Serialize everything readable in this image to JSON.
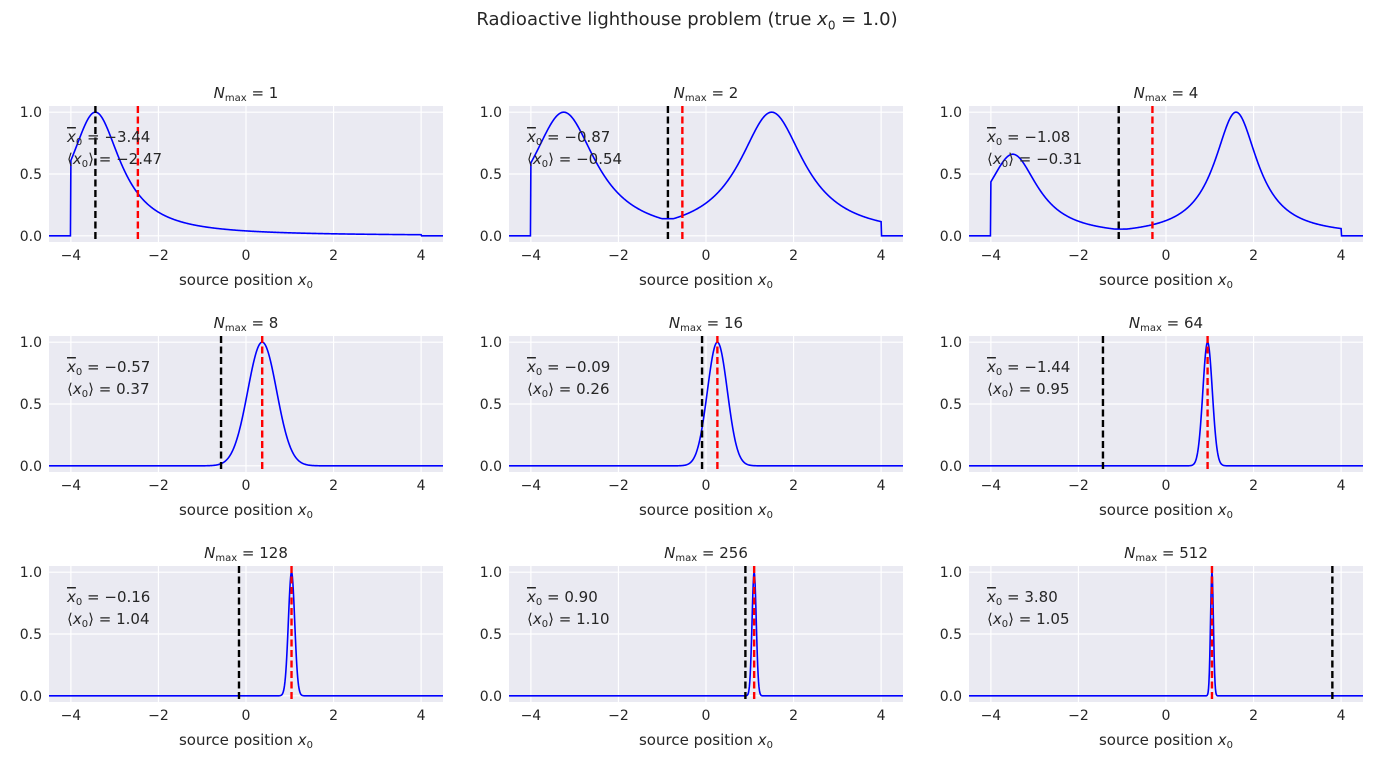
{
  "figure": {
    "title_prefix": "Radioactive lighthouse problem (true ",
    "title_var": "x",
    "title_sub": "0",
    "title_suffix": " = 1.0)"
  },
  "colors": {
    "background": "#eaeaf2",
    "grid": "#ffffff",
    "posterior": "#0000ff",
    "sample_mean_line": "#000000",
    "posterior_mean_line": "#ff0000"
  },
  "chart_data": [
    {
      "type": "line",
      "title_prefix": "N",
      "title_sub": "max",
      "title_value": "= 1",
      "xlabel_prefix": "source position ",
      "xlabel_var": "x",
      "xlabel_sub": "0",
      "xlim": [
        -4.5,
        4.5
      ],
      "ylim": [
        -0.05,
        1.05
      ],
      "xticks": [
        "−4",
        "−2",
        "0",
        "2",
        "4"
      ],
      "yticks": [
        "0.0",
        "0.5",
        "1.0"
      ],
      "support": [
        -4,
        4
      ],
      "grid": true,
      "peaks": [
        {
          "center": -3.44,
          "width": 0.7
        }
      ],
      "sample_mean": -3.44,
      "posterior_mean": -2.47,
      "annotation_sample_mean": "= −3.44",
      "annotation_posterior_mean": "= −2.47"
    },
    {
      "type": "line",
      "title_prefix": "N",
      "title_sub": "max",
      "title_value": "= 2",
      "xlabel_prefix": "source position ",
      "xlabel_var": "x",
      "xlabel_sub": "0",
      "xlim": [
        -4.5,
        4.5
      ],
      "ylim": [
        -0.05,
        1.05
      ],
      "xticks": [
        "−4",
        "−2",
        "0",
        "2",
        "4"
      ],
      "yticks": [
        "0.0",
        "0.5",
        "1.0"
      ],
      "support": [
        -4,
        4
      ],
      "grid": true,
      "peaks": [
        {
          "center": -3.25,
          "width": 0.9
        },
        {
          "center": 1.5,
          "width": 0.9
        }
      ],
      "sample_mean": -0.87,
      "posterior_mean": -0.54,
      "annotation_sample_mean": "= −0.87",
      "annotation_posterior_mean": "= −0.54"
    },
    {
      "type": "line",
      "title_prefix": "N",
      "title_sub": "max",
      "title_value": "= 4",
      "xlabel_prefix": "source position ",
      "xlabel_var": "x",
      "xlabel_sub": "0",
      "xlim": [
        -4.5,
        4.5
      ],
      "ylim": [
        -0.05,
        1.05
      ],
      "xticks": [
        "−4",
        "−2",
        "0",
        "2",
        "4"
      ],
      "yticks": [
        "0.0",
        "0.5",
        "1.0"
      ],
      "support": [
        -4,
        4
      ],
      "grid": true,
      "peaks": [
        {
          "center": -3.5,
          "width": 0.7,
          "height": 0.66
        },
        {
          "center": 1.6,
          "width": 0.6
        }
      ],
      "sample_mean": -1.08,
      "posterior_mean": -0.31,
      "annotation_sample_mean": "= −1.08",
      "annotation_posterior_mean": "= −0.31"
    },
    {
      "type": "line",
      "title_prefix": "N",
      "title_sub": "max",
      "title_value": "= 8",
      "xlabel_prefix": "source position ",
      "xlabel_var": "x",
      "xlabel_sub": "0",
      "xlim": [
        -4.5,
        4.5
      ],
      "ylim": [
        -0.05,
        1.05
      ],
      "xticks": [
        "−4",
        "−2",
        "0",
        "2",
        "4"
      ],
      "yticks": [
        "0.0",
        "0.5",
        "1.0"
      ],
      "support": [
        -4,
        4
      ],
      "grid": true,
      "peaks": [
        {
          "center": 0.37,
          "width": 0.55
        }
      ],
      "sample_mean": -0.57,
      "posterior_mean": 0.37,
      "annotation_sample_mean": "= −0.57",
      "annotation_posterior_mean": "= 0.37"
    },
    {
      "type": "line",
      "title_prefix": "N",
      "title_sub": "max",
      "title_value": "= 16",
      "xlabel_prefix": "source position ",
      "xlabel_var": "x",
      "xlabel_sub": "0",
      "xlim": [
        -4.5,
        4.5
      ],
      "ylim": [
        -0.05,
        1.05
      ],
      "xticks": [
        "−4",
        "−2",
        "0",
        "2",
        "4"
      ],
      "yticks": [
        "0.0",
        "0.5",
        "1.0"
      ],
      "support": [
        -4,
        4
      ],
      "grid": true,
      "peaks": [
        {
          "center": 0.26,
          "width": 0.38
        }
      ],
      "sample_mean": -0.09,
      "posterior_mean": 0.26,
      "annotation_sample_mean": "= −0.09",
      "annotation_posterior_mean": "= 0.26"
    },
    {
      "type": "line",
      "title_prefix": "N",
      "title_sub": "max",
      "title_value": "= 64",
      "xlabel_prefix": "source position ",
      "xlabel_var": "x",
      "xlabel_sub": "0",
      "xlim": [
        -4.5,
        4.5
      ],
      "ylim": [
        -0.05,
        1.05
      ],
      "xticks": [
        "−4",
        "−2",
        "0",
        "2",
        "4"
      ],
      "yticks": [
        "0.0",
        "0.5",
        "1.0"
      ],
      "support": [
        -4,
        4
      ],
      "grid": true,
      "peaks": [
        {
          "center": 0.95,
          "width": 0.18
        }
      ],
      "sample_mean": -1.44,
      "posterior_mean": 0.95,
      "annotation_sample_mean": "= −1.44",
      "annotation_posterior_mean": "= 0.95"
    },
    {
      "type": "line",
      "title_prefix": "N",
      "title_sub": "max",
      "title_value": "= 128",
      "xlabel_prefix": "source position ",
      "xlabel_var": "x",
      "xlabel_sub": "0",
      "xlim": [
        -4.5,
        4.5
      ],
      "ylim": [
        -0.05,
        1.05
      ],
      "xticks": [
        "−4",
        "−2",
        "0",
        "2",
        "4"
      ],
      "yticks": [
        "0.0",
        "0.5",
        "1.0"
      ],
      "support": [
        -4,
        4
      ],
      "grid": true,
      "peaks": [
        {
          "center": 1.04,
          "width": 0.12
        }
      ],
      "sample_mean": -0.16,
      "posterior_mean": 1.04,
      "annotation_sample_mean": "= −0.16",
      "annotation_posterior_mean": "= 1.04"
    },
    {
      "type": "line",
      "title_prefix": "N",
      "title_sub": "max",
      "title_value": "= 256",
      "xlabel_prefix": "source position ",
      "xlabel_var": "x",
      "xlabel_sub": "0",
      "xlim": [
        -4.5,
        4.5
      ],
      "ylim": [
        -0.05,
        1.05
      ],
      "xticks": [
        "−4",
        "−2",
        "0",
        "2",
        "4"
      ],
      "yticks": [
        "0.0",
        "0.5",
        "1.0"
      ],
      "support": [
        -4,
        4
      ],
      "grid": true,
      "peaks": [
        {
          "center": 1.1,
          "width": 0.08
        }
      ],
      "sample_mean": 0.9,
      "posterior_mean": 1.1,
      "annotation_sample_mean": "= 0.90",
      "annotation_posterior_mean": "= 1.10"
    },
    {
      "type": "line",
      "title_prefix": "N",
      "title_sub": "max",
      "title_value": "= 512",
      "xlabel_prefix": "source position ",
      "xlabel_var": "x",
      "xlabel_sub": "0",
      "xlim": [
        -4.5,
        4.5
      ],
      "ylim": [
        -0.05,
        1.05
      ],
      "xticks": [
        "−4",
        "−2",
        "0",
        "2",
        "4"
      ],
      "yticks": [
        "0.0",
        "0.5",
        "1.0"
      ],
      "support": [
        -4,
        4
      ],
      "grid": true,
      "peaks": [
        {
          "center": 1.05,
          "width": 0.055
        }
      ],
      "sample_mean": 3.8,
      "posterior_mean": 1.05,
      "annotation_sample_mean": "= 3.80",
      "annotation_posterior_mean": "= 1.05"
    }
  ]
}
